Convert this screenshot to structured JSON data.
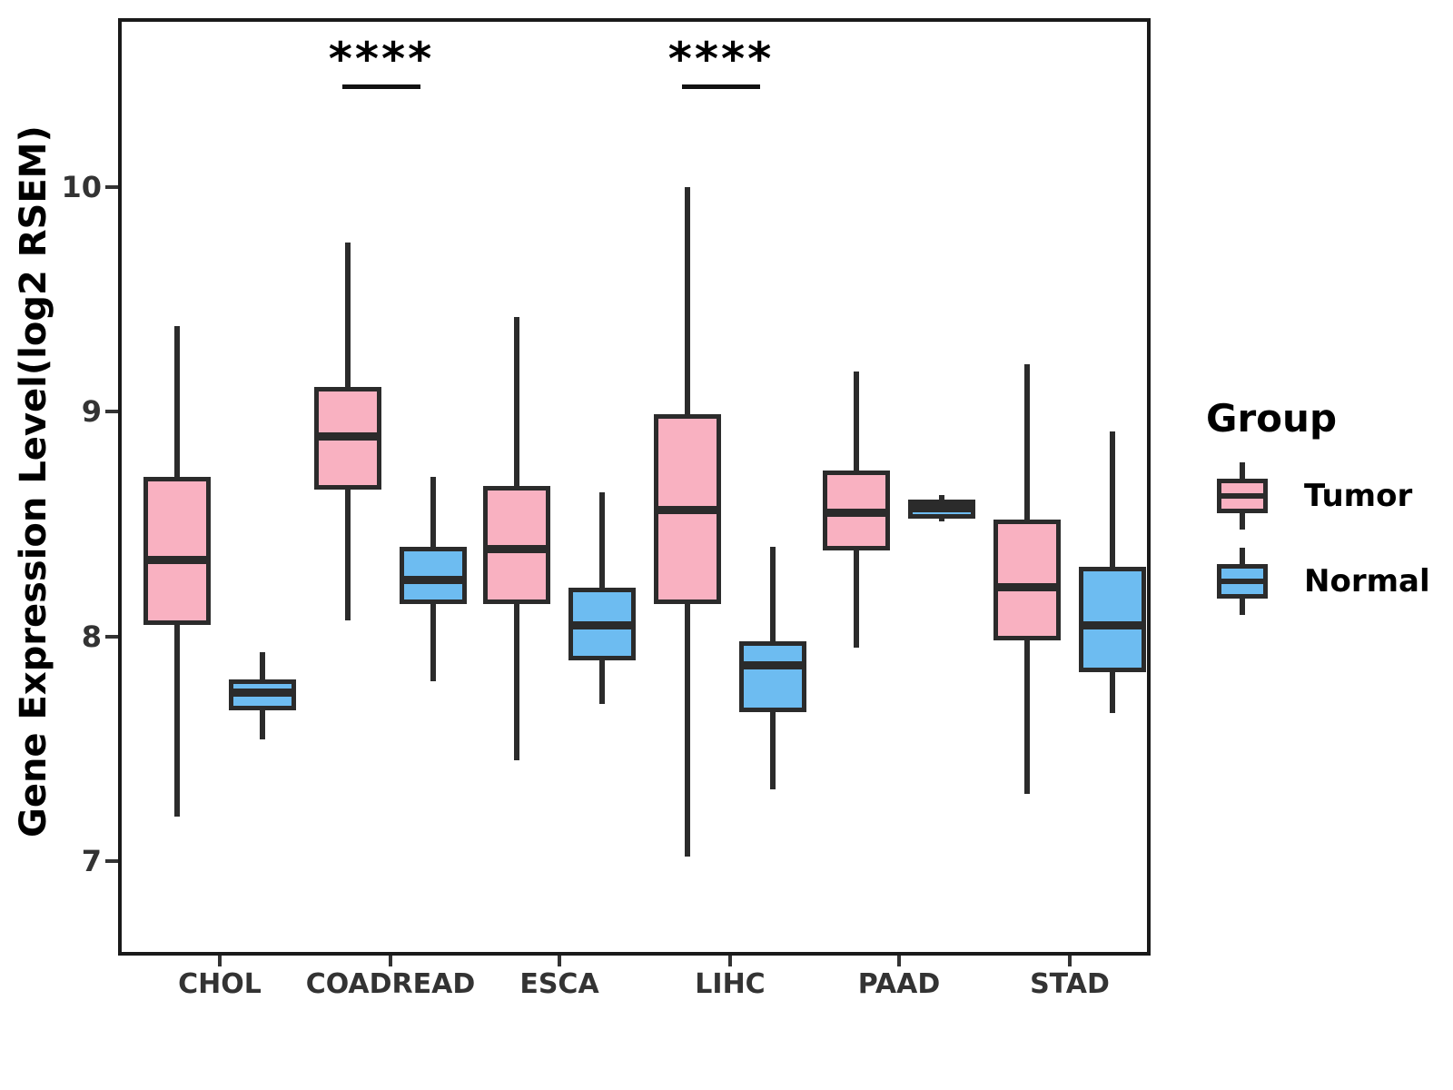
{
  "chart_data": {
    "type": "boxplot",
    "title": "",
    "xlabel": "",
    "ylabel": "Gene Expression Level(log2 RSEM)",
    "categories": [
      "CHOL",
      "COADREAD",
      "ESCA",
      "LIHC",
      "PAAD",
      "STAD"
    ],
    "yticks": [
      7,
      8,
      9,
      10
    ],
    "ylim": [
      6.58,
      10.75
    ],
    "grid": false,
    "legend_position": "right",
    "series": [
      {
        "name": "Tumor",
        "color": "#F9B1C1",
        "boxes": [
          {
            "category": "CHOL",
            "min": 7.2,
            "q1": 8.06,
            "median": 8.34,
            "q3": 8.7,
            "max": 9.38
          },
          {
            "category": "COADREAD",
            "min": 8.07,
            "q1": 8.66,
            "median": 8.89,
            "q3": 9.1,
            "max": 9.75
          },
          {
            "category": "ESCA",
            "min": 7.45,
            "q1": 8.15,
            "median": 8.39,
            "q3": 8.66,
            "max": 9.42
          },
          {
            "category": "LIHC",
            "min": 7.02,
            "q1": 8.15,
            "median": 8.56,
            "q3": 8.98,
            "max": 10.0
          },
          {
            "category": "PAAD",
            "min": 7.95,
            "q1": 8.39,
            "median": 8.55,
            "q3": 8.73,
            "max": 9.18
          },
          {
            "category": "STAD",
            "min": 7.3,
            "q1": 7.99,
            "median": 8.22,
            "q3": 8.51,
            "max": 9.21
          }
        ]
      },
      {
        "name": "Normal",
        "color": "#6DBCF1",
        "boxes": [
          {
            "category": "CHOL",
            "min": 7.54,
            "q1": 7.68,
            "median": 7.75,
            "q3": 7.8,
            "max": 7.93
          },
          {
            "category": "COADREAD",
            "min": 7.8,
            "q1": 8.15,
            "median": 8.25,
            "q3": 8.39,
            "max": 8.71
          },
          {
            "category": "ESCA",
            "min": 7.7,
            "q1": 7.9,
            "median": 8.05,
            "q3": 8.21,
            "max": 8.64
          },
          {
            "category": "LIHC",
            "min": 7.32,
            "q1": 7.67,
            "median": 7.87,
            "q3": 7.97,
            "max": 8.4
          },
          {
            "category": "PAAD",
            "min": 8.51,
            "q1": 8.53,
            "median": 8.57,
            "q3": 8.6,
            "max": 8.63
          },
          {
            "category": "STAD",
            "min": 7.66,
            "q1": 7.85,
            "median": 8.05,
            "q3": 8.3,
            "max": 8.91
          }
        ]
      }
    ],
    "annotations": [
      {
        "category": "COADREAD",
        "text": "****"
      },
      {
        "category": "LIHC",
        "text": "****"
      }
    ]
  },
  "legend": {
    "title": "Group",
    "items": [
      {
        "label": "Tumor"
      },
      {
        "label": "Normal"
      }
    ]
  },
  "colors": {
    "tumor": "#F9B1C1",
    "normal": "#6DBCF1",
    "line": "#2b2b2b",
    "panel_border": "#1a1a1a",
    "tick_text": "#333333"
  }
}
